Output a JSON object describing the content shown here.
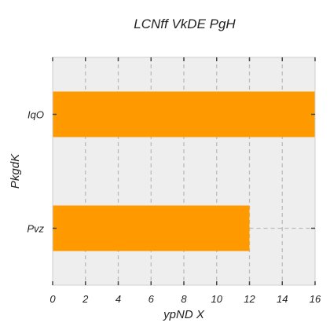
{
  "chart_data": {
    "type": "bar",
    "orientation": "horizontal",
    "title": "LCNff VkDE PgH",
    "xlabel": "ypND X",
    "ylabel": "PkgdK",
    "categories": [
      "IqO",
      "Pvz"
    ],
    "values": [
      16,
      12
    ],
    "xlim": [
      0,
      16
    ],
    "xticks": [
      0,
      2,
      4,
      6,
      8,
      10,
      12,
      14,
      16
    ],
    "grid": "x-dashed",
    "colors": {
      "bar": "#ff9900",
      "plot_background": "#eeeeee",
      "grid": "#bbbbbb",
      "axis": "#444444"
    }
  }
}
